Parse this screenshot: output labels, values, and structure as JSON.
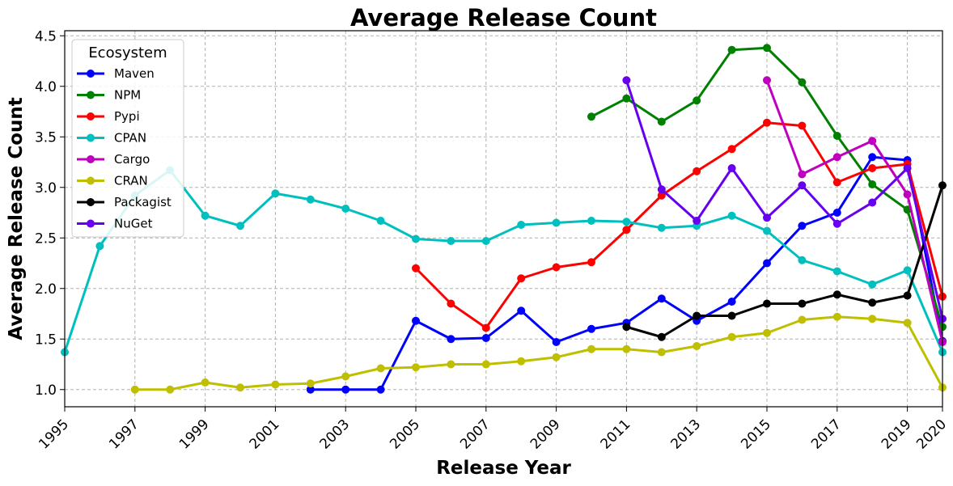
{
  "chart_data": {
    "type": "line",
    "title": "Average Release Count",
    "xlabel": "Release Year",
    "ylabel": "Average Release Count",
    "xlim": [
      1995,
      2020
    ],
    "ylim": [
      0.83,
      4.55
    ],
    "xticks": [
      1995,
      1997,
      1999,
      2001,
      2003,
      2005,
      2007,
      2009,
      2011,
      2013,
      2015,
      2017,
      2019,
      2020
    ],
    "yticks": [
      1.0,
      1.5,
      2.0,
      2.5,
      3.0,
      3.5,
      4.0,
      4.5
    ],
    "grid": true,
    "legend": {
      "title": "Ecosystem",
      "placement": "top-left"
    },
    "series": [
      {
        "name": "Maven",
        "color": "#0000ff",
        "x": [
          2002,
          2003,
          2004,
          2005,
          2006,
          2007,
          2008,
          2009,
          2010,
          2011,
          2012,
          2013,
          2014,
          2015,
          2016,
          2017,
          2018,
          2019,
          2020
        ],
        "y": [
          1.0,
          1.0,
          1.0,
          1.68,
          1.5,
          1.51,
          1.78,
          1.47,
          1.6,
          1.66,
          1.9,
          1.68,
          1.87,
          2.25,
          2.62,
          2.75,
          3.3,
          3.27,
          1.48
        ]
      },
      {
        "name": "NPM",
        "color": "#008000",
        "x": [
          2010,
          2011,
          2012,
          2013,
          2014,
          2015,
          2016,
          2017,
          2018,
          2019,
          2020
        ],
        "y": [
          3.7,
          3.88,
          3.65,
          3.86,
          4.36,
          4.38,
          4.04,
          3.51,
          3.03,
          2.78,
          1.62
        ]
      },
      {
        "name": "Pypi",
        "color": "#ff0000",
        "x": [
          2005,
          2006,
          2007,
          2008,
          2009,
          2010,
          2011,
          2012,
          2013,
          2014,
          2015,
          2016,
          2017,
          2018,
          2019,
          2020
        ],
        "y": [
          2.2,
          1.85,
          1.61,
          2.1,
          2.21,
          2.26,
          2.58,
          2.92,
          3.16,
          3.38,
          3.64,
          3.61,
          3.05,
          3.19,
          3.23,
          1.92
        ]
      },
      {
        "name": "CPAN",
        "color": "#00bfbf",
        "x": [
          1995,
          1996,
          1997,
          1998,
          1999,
          2000,
          2001,
          2002,
          2003,
          2004,
          2005,
          2006,
          2007,
          2008,
          2009,
          2010,
          2011,
          2012,
          2013,
          2014,
          2015,
          2016,
          2017,
          2018,
          2019,
          2020
        ],
        "y": [
          1.37,
          2.42,
          2.92,
          3.17,
          2.72,
          2.62,
          2.94,
          2.88,
          2.79,
          2.67,
          2.49,
          2.47,
          2.47,
          2.63,
          2.65,
          2.67,
          2.66,
          2.6,
          2.62,
          2.72,
          2.57,
          2.28,
          2.17,
          2.04,
          2.18,
          1.37
        ]
      },
      {
        "name": "Cargo",
        "color": "#bf00bf",
        "x": [
          2015,
          2016,
          2017,
          2018,
          2019,
          2020
        ],
        "y": [
          4.06,
          3.13,
          3.3,
          3.46,
          2.93,
          1.47
        ]
      },
      {
        "name": "CRAN",
        "color": "#bfbf00",
        "x": [
          1997,
          1998,
          1999,
          2000,
          2001,
          2002,
          2003,
          2004,
          2005,
          2006,
          2007,
          2008,
          2009,
          2010,
          2011,
          2012,
          2013,
          2014,
          2015,
          2016,
          2017,
          2018,
          2019,
          2020
        ],
        "y": [
          1.0,
          1.0,
          1.07,
          1.02,
          1.05,
          1.06,
          1.13,
          1.21,
          1.22,
          1.25,
          1.25,
          1.28,
          1.32,
          1.4,
          1.4,
          1.37,
          1.43,
          1.52,
          1.56,
          1.69,
          1.72,
          1.7,
          1.66,
          1.02
        ]
      },
      {
        "name": "Packagist",
        "color": "#000000",
        "x": [
          2011,
          2012,
          2013,
          2014,
          2015,
          2016,
          2017,
          2018,
          2019,
          2020
        ],
        "y": [
          1.62,
          1.52,
          1.73,
          1.73,
          1.85,
          1.85,
          1.94,
          1.86,
          1.93,
          3.02
        ]
      },
      {
        "name": "NuGet",
        "color": "#6600ee",
        "x": [
          2011,
          2012,
          2013,
          2014,
          2015,
          2016,
          2017,
          2018,
          2019,
          2020
        ],
        "y": [
          4.06,
          2.98,
          2.67,
          3.19,
          2.7,
          3.02,
          2.64,
          2.85,
          3.19,
          1.7
        ]
      }
    ]
  }
}
